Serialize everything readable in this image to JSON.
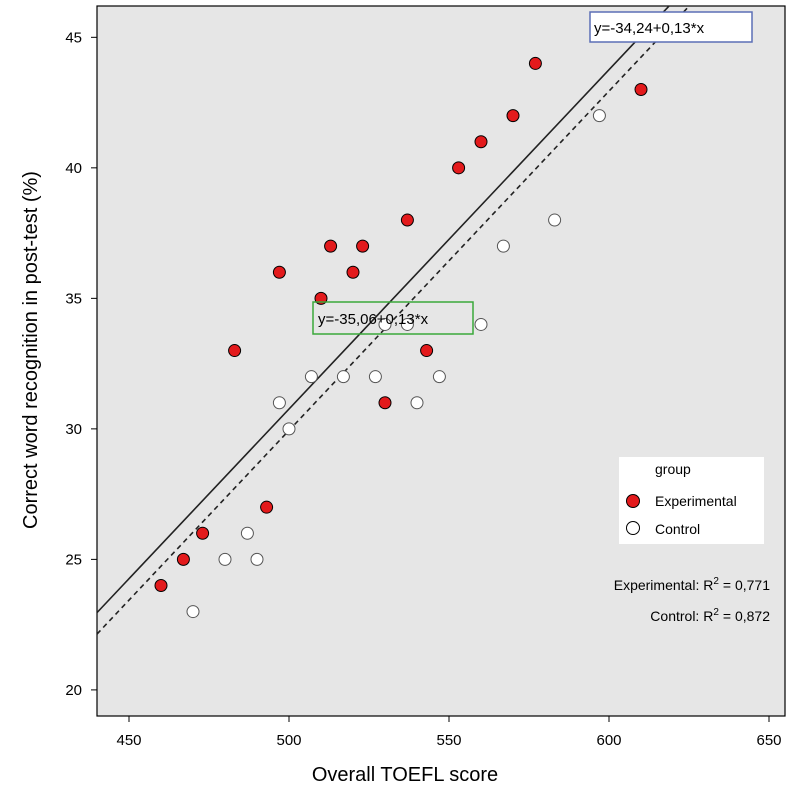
{
  "chart_data": {
    "type": "scatter",
    "xlabel": "Overall TOEFL score",
    "ylabel": "Correct word recognition in post-test (%)",
    "xlim": [
      440,
      655
    ],
    "ylim": [
      19,
      46.2
    ],
    "xticks": [
      450,
      500,
      550,
      600,
      650
    ],
    "yticks": [
      20,
      25,
      30,
      35,
      40,
      45
    ],
    "grid": false,
    "legend": {
      "title": "group",
      "position": "right",
      "entries": [
        {
          "label": "Experimental",
          "color": "#e31a1c",
          "marker": "filled-circle"
        },
        {
          "label": "Control",
          "color": "#ffffff",
          "marker": "open-circle"
        }
      ]
    },
    "series": [
      {
        "name": "Experimental",
        "color": "#e31a1c",
        "points": [
          [
            460,
            24
          ],
          [
            467,
            25
          ],
          [
            473,
            26
          ],
          [
            483,
            33
          ],
          [
            493,
            27
          ],
          [
            497,
            36
          ],
          [
            510,
            35
          ],
          [
            513,
            37
          ],
          [
            520,
            36
          ],
          [
            523,
            37
          ],
          [
            530,
            31
          ],
          [
            537,
            38
          ],
          [
            543,
            33
          ],
          [
            553,
            40
          ],
          [
            560,
            41
          ],
          [
            570,
            42
          ],
          [
            577,
            44
          ],
          [
            610,
            43
          ]
        ],
        "fit": {
          "label": "y=-34,24+0,13*x",
          "intercept": -34.24,
          "slope": 0.13,
          "style": "solid"
        }
      },
      {
        "name": "Control",
        "color": "#ffffff",
        "points": [
          [
            470,
            23
          ],
          [
            480,
            25
          ],
          [
            487,
            26
          ],
          [
            490,
            25
          ],
          [
            497,
            31
          ],
          [
            500,
            30
          ],
          [
            507,
            32
          ],
          [
            517,
            32
          ],
          [
            527,
            32
          ],
          [
            530,
            34
          ],
          [
            537,
            34
          ],
          [
            540,
            31
          ],
          [
            547,
            32
          ],
          [
            560,
            34
          ],
          [
            567,
            37
          ],
          [
            583,
            38
          ],
          [
            597,
            42
          ]
        ],
        "fit": {
          "label": "y=-35,06+0,13*x",
          "intercept": -35.06,
          "slope": 0.13,
          "style": "dashed"
        }
      }
    ],
    "fit_labels": {
      "experimental": "y=-34,24+0,13*x",
      "control": "y=-35,06+0,13*x"
    },
    "r2": {
      "experimental_prefix": "Experimental: R",
      "experimental_value": "= 0,771",
      "control_prefix": "Control: R",
      "control_value": "= 0,872",
      "superscript": "2"
    }
  }
}
